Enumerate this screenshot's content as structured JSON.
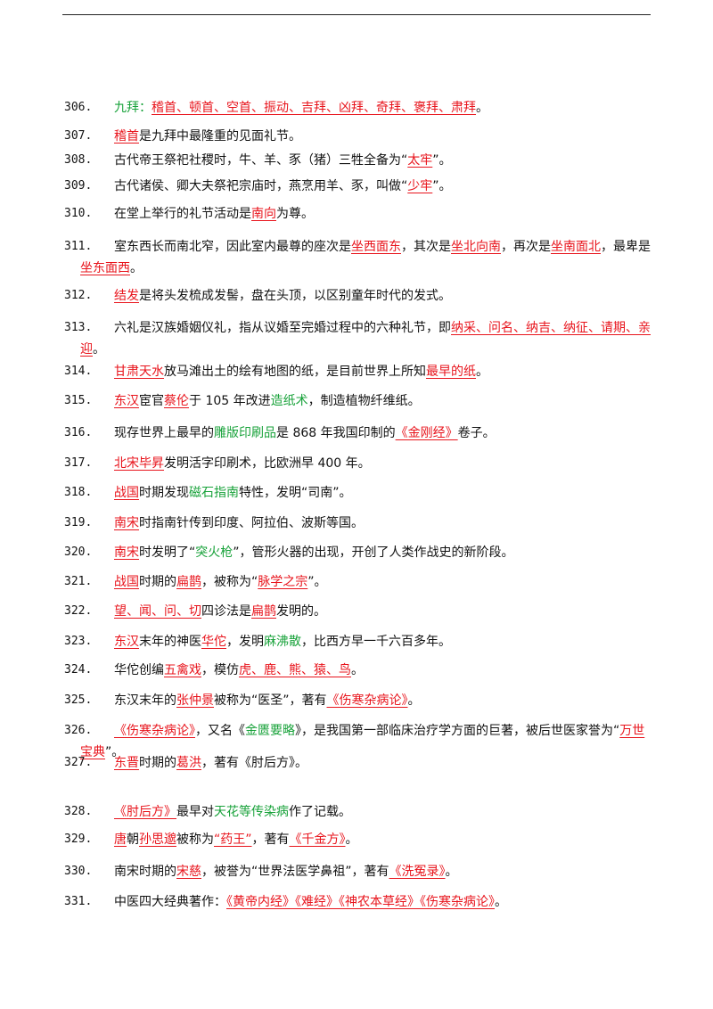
{
  "items": [
    {
      "num": "306.",
      "segs": [
        [
          "g",
          "九拜："
        ],
        [
          "r",
          "稽首、顿首、空首、振动、吉拜、凶拜、奇拜、褒拜、肃拜"
        ],
        [
          "p",
          "。"
        ]
      ]
    },
    {
      "num": "307.",
      "segs": [
        [
          "r",
          "稽首"
        ],
        [
          "p",
          "是九拜中最隆重的见面礼节。"
        ]
      ]
    },
    {
      "num": "308.",
      "segs": [
        [
          "p",
          "古代帝王祭祀社稷时，牛、羊、豕（猪）三牲全备为“"
        ],
        [
          "r",
          "太牢"
        ],
        [
          "p",
          "”。"
        ]
      ]
    },
    {
      "num": "309.",
      "segs": [
        [
          "p",
          "古代诸侯、卿大夫祭祀宗庙时，燕烹用羊、豕，叫做“"
        ],
        [
          "r",
          "少牢"
        ],
        [
          "p",
          "”。"
        ]
      ]
    },
    {
      "num": "310.",
      "segs": [
        [
          "p",
          "在堂上举行的礼节活动是"
        ],
        [
          "r",
          "南向"
        ],
        [
          "p",
          "为尊。"
        ]
      ]
    },
    {
      "num": "311.",
      "wrap": true,
      "segs": [
        [
          "p",
          "室东西长而南北窄，因此室内最尊的座次是"
        ],
        [
          "r",
          "坐西面东"
        ],
        [
          "p",
          "，其次是"
        ],
        [
          "r",
          "坐北向南"
        ],
        [
          "p",
          "，再次是"
        ],
        [
          "r",
          "坐南面北"
        ],
        [
          "p",
          "，最卑是"
        ],
        [
          "r",
          "坐东面西"
        ],
        [
          "p",
          "。"
        ]
      ]
    },
    {
      "num": "312.",
      "segs": [
        [
          "r",
          "结发"
        ],
        [
          "p",
          "是将头发梳成发髻，盘在头顶，以区别童年时代的发式。"
        ]
      ]
    },
    {
      "num": "313.",
      "wrap": true,
      "segs": [
        [
          "p",
          "六礼是汉族婚姻仪礼，指从议婚至完婚过程中的六种礼节，即"
        ],
        [
          "r",
          "纳采、问名、纳吉、纳征、请期、亲迎"
        ],
        [
          "p",
          "。"
        ]
      ]
    },
    {
      "num": "314.",
      "segs": [
        [
          "r",
          "甘肃天水"
        ],
        [
          "p",
          "放马滩出土的绘有地图的纸，是目前世界上所知"
        ],
        [
          "r",
          "最早的纸"
        ],
        [
          "p",
          "。"
        ]
      ]
    },
    {
      "num": "315.",
      "segs": [
        [
          "r",
          "东汉"
        ],
        [
          "p",
          "宦官"
        ],
        [
          "r",
          "蔡伦"
        ],
        [
          "p",
          "于 105 年改进"
        ],
        [
          "g",
          "造纸术"
        ],
        [
          "p",
          "，制造植物纤维纸。"
        ]
      ]
    },
    {
      "num": "316.",
      "segs": [
        [
          "p",
          "现存世界上最早的"
        ],
        [
          "g",
          "雕版印刷品"
        ],
        [
          "p",
          "是 868 年我国印制的"
        ],
        [
          "r",
          "《金刚经》"
        ],
        [
          "p",
          "卷子。"
        ]
      ]
    },
    {
      "num": "317.",
      "segs": [
        [
          "r",
          "北宋毕昇"
        ],
        [
          "p",
          "发明活字印刷术，比欧洲早 400 年。"
        ]
      ]
    },
    {
      "num": "318.",
      "segs": [
        [
          "r",
          "战国"
        ],
        [
          "p",
          "时期发现"
        ],
        [
          "g",
          "磁石指南"
        ],
        [
          "p",
          "特性，发明“司南”。"
        ]
      ]
    },
    {
      "num": "319.",
      "segs": [
        [
          "r",
          "南宋"
        ],
        [
          "p",
          "时指南针传到印度、阿拉伯、波斯等国。"
        ]
      ]
    },
    {
      "num": "320.",
      "segs": [
        [
          "r",
          "南宋"
        ],
        [
          "p",
          "时发明了“"
        ],
        [
          "g",
          "突火枪"
        ],
        [
          "p",
          "”，管形火器的出现，开创了人类作战史的新阶段。"
        ]
      ]
    },
    {
      "num": "321.",
      "segs": [
        [
          "r",
          "战国"
        ],
        [
          "p",
          "时期的"
        ],
        [
          "r",
          "扁鹊"
        ],
        [
          "p",
          "，被称为“"
        ],
        [
          "r",
          "脉学之宗"
        ],
        [
          "p",
          "”。"
        ]
      ]
    },
    {
      "num": "322.",
      "segs": [
        [
          "r",
          "望、闻、问、切"
        ],
        [
          "p",
          "四诊法是"
        ],
        [
          "r",
          "扁鹊"
        ],
        [
          "p",
          "发明的。"
        ]
      ]
    },
    {
      "num": "323.",
      "segs": [
        [
          "r",
          "东汉"
        ],
        [
          "p",
          "末年的神医"
        ],
        [
          "r",
          "华佗"
        ],
        [
          "p",
          "，发明"
        ],
        [
          "g",
          "麻沸散"
        ],
        [
          "p",
          "，比西方早一千六百多年。"
        ]
      ]
    },
    {
      "num": "324.",
      "segs": [
        [
          "p",
          "华佗创编"
        ],
        [
          "r",
          "五禽戏"
        ],
        [
          "p",
          "，模仿"
        ],
        [
          "r",
          "虎、鹿、熊、猿、鸟"
        ],
        [
          "p",
          "。"
        ]
      ]
    },
    {
      "num": "325.",
      "segs": [
        [
          "p",
          "东汉末年的"
        ],
        [
          "r",
          "张仲景"
        ],
        [
          "p",
          "被称为“医圣”，著有"
        ],
        [
          "r",
          "《伤寒杂病论》"
        ],
        [
          "p",
          "。"
        ]
      ]
    },
    {
      "num": "326.",
      "wrap": true,
      "segs": [
        [
          "r",
          "《伤寒杂病论》"
        ],
        [
          "p",
          "，又名《"
        ],
        [
          "g",
          "金匮要略"
        ],
        [
          "p",
          "》，是我国第一部临床治疗学方面的巨著，被后世医家誉为“"
        ],
        [
          "r",
          "万世宝典"
        ],
        [
          "p",
          "”。"
        ]
      ]
    },
    {
      "num": "327.",
      "segs": [
        [
          "r",
          "东晋"
        ],
        [
          "p",
          "时期的"
        ],
        [
          "r",
          "葛洪"
        ],
        [
          "p",
          "，著有《肘后方》。"
        ]
      ]
    },
    {
      "num": "328.",
      "segs": [
        [
          "r",
          "《肘后方》"
        ],
        [
          "p",
          "最早对"
        ],
        [
          "g",
          "天花等传染病"
        ],
        [
          "p",
          "作了记载。"
        ]
      ]
    },
    {
      "num": "329.",
      "segs": [
        [
          "r",
          "唐"
        ],
        [
          "p",
          "朝"
        ],
        [
          "r",
          "孙思邈"
        ],
        [
          "p",
          "被称为"
        ],
        [
          "r",
          "“药王”"
        ],
        [
          "p",
          "，著有"
        ],
        [
          "r",
          "《千金方》"
        ],
        [
          "p",
          "。"
        ]
      ]
    },
    {
      "num": "330.",
      "segs": [
        [
          "p",
          "南宋时期的"
        ],
        [
          "r",
          "宋慈"
        ],
        [
          "p",
          "，被誉为“世界法医学鼻祖”，著有"
        ],
        [
          "r",
          "《洗冤录》"
        ],
        [
          "p",
          "。"
        ]
      ]
    },
    {
      "num": "331.",
      "segs": [
        [
          "p",
          "中医四大经典著作："
        ],
        [
          "r",
          "《黄帝内经》《难经》《神农本草经》《伤寒杂病论》"
        ],
        [
          "p",
          "。"
        ]
      ]
    }
  ],
  "colors": {
    "red": "#e8141c",
    "green": "#18a23a",
    "black": "#111111"
  }
}
